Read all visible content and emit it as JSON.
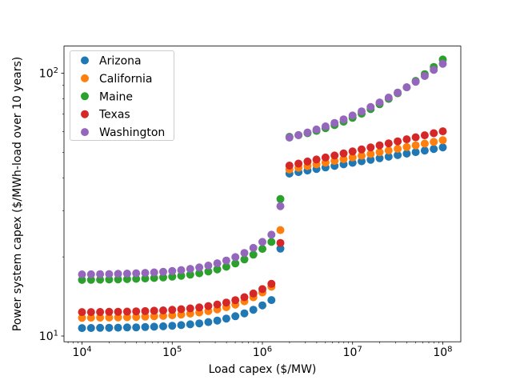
{
  "chart_data": {
    "type": "scatter",
    "title": "",
    "xlabel": "Load capex ($/MW)",
    "ylabel": "Power system capex ($/MWh-load over 10 years)",
    "xscale": "log",
    "yscale": "log",
    "xlim": [
      6310,
      158489319
    ],
    "ylim": [
      9.51,
      126.8
    ],
    "grid": false,
    "legend_position": "upper left",
    "x_axis": {
      "label": "Load capex ($/MW)",
      "ticks": [
        {
          "v": 10000,
          "exp": "4"
        },
        {
          "v": 100000,
          "exp": "5"
        },
        {
          "v": 1000000,
          "exp": "6"
        },
        {
          "v": 10000000,
          "exp": "7"
        },
        {
          "v": 100000000,
          "exp": "8"
        }
      ]
    },
    "y_axis": {
      "label": "Power system capex ($/MWh-load over 10 years)",
      "ticks": [
        {
          "v": 10,
          "exp": "1"
        },
        {
          "v": 100,
          "exp": "2"
        }
      ]
    },
    "x": [
      10000,
      12589,
      15849,
      19953,
      25119,
      31623,
      39811,
      50119,
      63096,
      79433,
      100000,
      125893,
      158489,
      199526,
      251189,
      316228,
      398107,
      501187,
      630957,
      794328,
      1000000,
      1258925,
      1584893,
      1995262,
      2511886,
      3162278,
      3981072,
      5011872,
      6309573,
      7943282,
      10000000,
      12589254,
      15848932,
      19952623,
      25118864,
      31622777,
      39810717,
      50118723,
      63095734,
      79432823,
      100000000
    ],
    "series": [
      {
        "name": "Arizona",
        "color": "#1f77b4",
        "values": [
          10.72,
          10.73,
          10.74,
          10.75,
          10.76,
          10.78,
          10.79,
          10.82,
          10.85,
          10.89,
          10.94,
          11.0,
          11.08,
          11.17,
          11.3,
          11.45,
          11.65,
          11.89,
          12.2,
          12.59,
          13.08,
          13.7,
          21.5,
          41.5,
          42.06,
          42.63,
          43.21,
          43.79,
          44.39,
          44.99,
          45.6,
          46.22,
          46.84,
          47.48,
          48.12,
          48.77,
          49.43,
          50.1,
          50.78,
          51.47,
          52.2
        ]
      },
      {
        "name": "California",
        "color": "#ff7f0e",
        "values": [
          11.73,
          11.74,
          11.75,
          11.76,
          11.77,
          11.79,
          11.82,
          11.85,
          11.89,
          11.93,
          11.99,
          12.07,
          12.17,
          12.29,
          12.44,
          12.63,
          12.87,
          13.17,
          13.56,
          14.04,
          14.64,
          15.4,
          25.3,
          43.0,
          43.66,
          44.32,
          45.0,
          45.68,
          46.38,
          47.09,
          47.8,
          48.53,
          49.27,
          50.02,
          50.79,
          51.56,
          52.35,
          53.14,
          53.95,
          54.78,
          55.6
        ]
      },
      {
        "name": "Maine",
        "color": "#2ca02c",
        "values": [
          16.35,
          16.36,
          16.38,
          16.4,
          16.43,
          16.46,
          16.51,
          16.56,
          16.63,
          16.71,
          16.82,
          16.95,
          17.12,
          17.33,
          17.6,
          17.93,
          18.35,
          18.89,
          19.56,
          20.4,
          21.46,
          22.8,
          33.2,
          57.28,
          58.08,
          59.09,
          60.32,
          61.76,
          63.45,
          65.4,
          67.61,
          70.14,
          72.98,
          76.19,
          79.82,
          83.86,
          88.39,
          93.48,
          99.18,
          105.6,
          112.7
        ]
      },
      {
        "name": "Texas",
        "color": "#d62728",
        "values": [
          12.33,
          12.33,
          12.34,
          12.36,
          12.37,
          12.39,
          12.41,
          12.44,
          12.48,
          12.52,
          12.58,
          12.65,
          12.74,
          12.85,
          13.0,
          13.18,
          13.41,
          13.69,
          14.05,
          14.51,
          15.08,
          15.8,
          22.6,
          44.5,
          45.3,
          46.11,
          46.93,
          47.77,
          48.62,
          49.49,
          50.38,
          51.28,
          52.19,
          53.13,
          54.08,
          55.04,
          56.03,
          57.03,
          58.05,
          59.09,
          60.1
        ]
      },
      {
        "name": "Washington",
        "color": "#9467bd",
        "values": [
          17.16,
          17.17,
          17.19,
          17.21,
          17.24,
          17.28,
          17.33,
          17.39,
          17.46,
          17.55,
          17.67,
          17.82,
          18.01,
          18.24,
          18.53,
          18.91,
          19.37,
          19.96,
          20.7,
          21.64,
          22.81,
          24.29,
          31.2,
          56.89,
          58.11,
          59.49,
          61.03,
          62.74,
          64.65,
          66.74,
          69.03,
          71.55,
          74.35,
          77.38,
          80.73,
          84.37,
          88.38,
          92.77,
          97.59,
          102.9,
          108.6
        ]
      }
    ],
    "marker": {
      "shape": "circle",
      "radius_px": 5
    }
  }
}
